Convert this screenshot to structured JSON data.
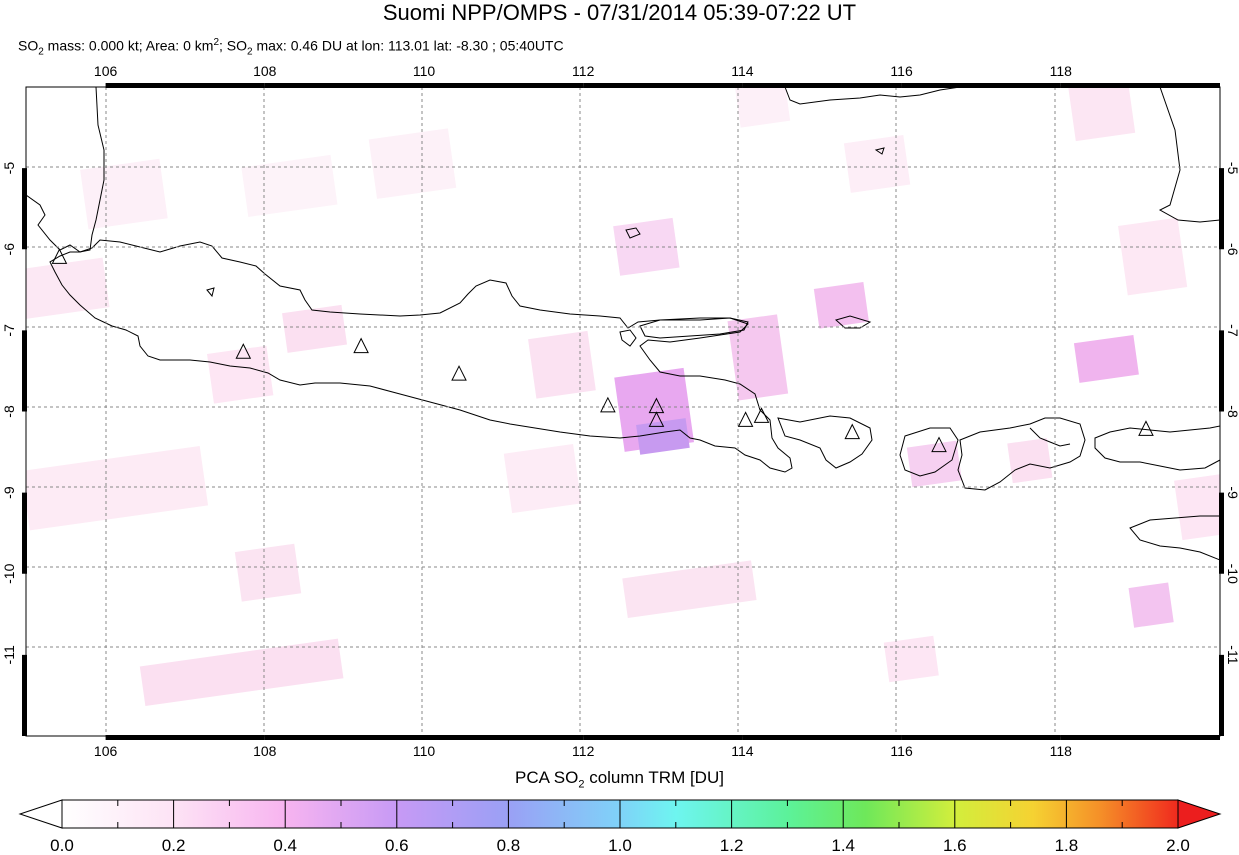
{
  "header": {
    "title": "Suomi NPP/OMPS - 07/31/2014 05:39-07:22 UT",
    "subtitle_parts": [
      "SO",
      "2",
      " mass: 0.000 kt; Area: 0 km",
      "2",
      "; SO",
      "2",
      " max: 0.46 DU at lon: 113.01 lat: -8.30 ; 05:40UTC"
    ]
  },
  "map": {
    "lon_range": [
      105.0,
      120.0
    ],
    "lat_range": [
      -12.0,
      -4.0
    ],
    "lon_ticks": [
      106,
      108,
      110,
      112,
      114,
      116,
      118
    ],
    "lat_ticks": [
      -5,
      -6,
      -7,
      -8,
      -9,
      -10,
      -11
    ],
    "lon_labels": [
      "106",
      "108",
      "110",
      "112",
      "114",
      "116",
      "118"
    ],
    "lat_labels": [
      "-5",
      "-6",
      "-7",
      "-8",
      "-9",
      "-10",
      "-11"
    ],
    "grid": true,
    "coastline_color": "#000000",
    "volcanoes": [
      {
        "lon": 105.42,
        "lat": -6.1
      },
      {
        "lon": 107.73,
        "lat": -7.27
      },
      {
        "lon": 109.21,
        "lat": -7.2
      },
      {
        "lon": 110.44,
        "lat": -7.54
      },
      {
        "lon": 112.31,
        "lat": -7.93
      },
      {
        "lon": 112.92,
        "lat": -7.94
      },
      {
        "lon": 112.92,
        "lat": -8.11
      },
      {
        "lon": 114.04,
        "lat": -8.11
      },
      {
        "lon": 114.24,
        "lat": -8.06
      },
      {
        "lon": 115.38,
        "lat": -8.26
      },
      {
        "lon": 116.47,
        "lat": -8.42
      },
      {
        "lon": 119.07,
        "lat": -8.22
      }
    ]
  },
  "colorbar": {
    "label_parts": [
      "PCA SO",
      "2",
      " column TRM [DU]"
    ],
    "tick_labels": [
      "0.0",
      "0.2",
      "0.4",
      "0.6",
      "0.8",
      "1.0",
      "1.2",
      "1.4",
      "1.6",
      "1.8",
      "2.0"
    ],
    "range": [
      0.0,
      2.0
    ],
    "colors": [
      "#ffffff",
      "#fde3f5",
      "#f7b4f0",
      "#c79af5",
      "#9aa0f5",
      "#82c8f8",
      "#6ef5f0",
      "#5cf29a",
      "#6ee85a",
      "#c8ee3c",
      "#f5e632",
      "#f5a028",
      "#f55a1e",
      "#ec1e1e"
    ]
  }
}
